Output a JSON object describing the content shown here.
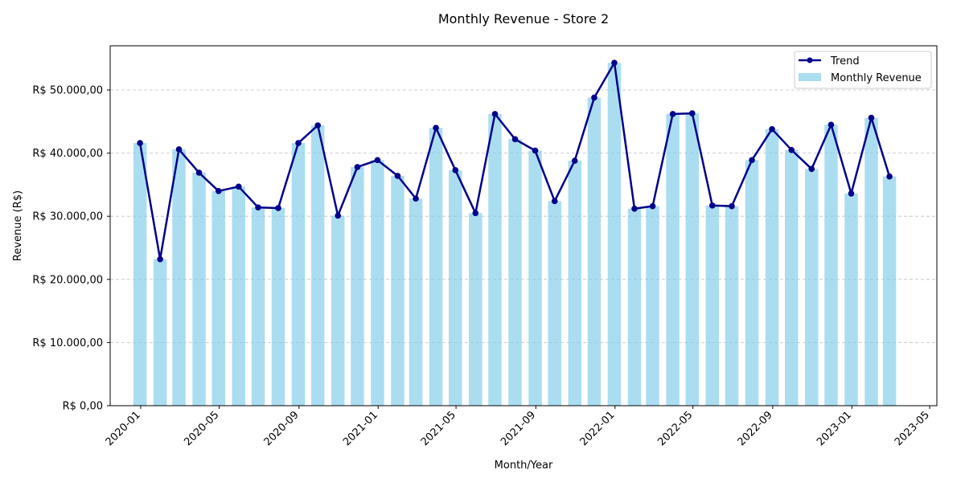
{
  "chart_data": {
    "type": "bar",
    "title": "Monthly Revenue - Store 2",
    "xlabel": "Month/Year",
    "ylabel": "Revenue (R$)",
    "ylim": [
      0,
      57000
    ],
    "y_ticks": [
      0,
      10000,
      20000,
      30000,
      40000,
      50000
    ],
    "y_tick_labels": [
      "R$ 0,00",
      "R$ 10.000,00",
      "R$ 20.000,00",
      "R$ 30.000,00",
      "R$ 40.000,00",
      "R$ 50.000,00"
    ],
    "x_range": [
      "2019-11-15",
      "2023-05-12"
    ],
    "x_ticks": [
      "2020-01-01",
      "2020-05-01",
      "2020-09-01",
      "2021-01-01",
      "2021-05-01",
      "2021-09-01",
      "2022-01-01",
      "2022-05-01",
      "2022-09-01",
      "2023-01-01",
      "2023-05-01"
    ],
    "x_tick_labels": [
      "2020-01",
      "2020-05",
      "2020-09",
      "2021-01",
      "2021-05",
      "2021-09",
      "2022-01",
      "2022-05",
      "2022-09",
      "2023-01",
      "2023-05"
    ],
    "grid": "y-dashed",
    "legend_position": "top-right",
    "dates": [
      "2019-12-31",
      "2020-01-31",
      "2020-02-29",
      "2020-03-31",
      "2020-04-30",
      "2020-05-31",
      "2020-06-30",
      "2020-07-31",
      "2020-08-31",
      "2020-09-30",
      "2020-10-31",
      "2020-11-30",
      "2020-12-31",
      "2021-01-31",
      "2021-02-28",
      "2021-03-31",
      "2021-04-30",
      "2021-05-31",
      "2021-06-30",
      "2021-07-31",
      "2021-08-31",
      "2021-09-30",
      "2021-10-31",
      "2021-11-30",
      "2021-12-31",
      "2022-01-31",
      "2022-02-28",
      "2022-03-31",
      "2022-04-30",
      "2022-05-31",
      "2022-06-30",
      "2022-07-31",
      "2022-08-31",
      "2022-09-30",
      "2022-10-31",
      "2022-11-30",
      "2022-12-31",
      "2023-01-31",
      "2023-02-28"
    ],
    "series": [
      {
        "name": "Monthly Revenue",
        "type": "bar",
        "color": "#87ceeb",
        "values": [
          41600,
          23200,
          40600,
          36900,
          34000,
          34700,
          31400,
          31300,
          41600,
          44400,
          30100,
          37800,
          38900,
          36400,
          32800,
          44000,
          37300,
          30500,
          46200,
          42200,
          40400,
          32400,
          38800,
          48800,
          54300,
          31200,
          31600,
          46200,
          46300,
          31700,
          31600,
          38900,
          43800,
          40500,
          37500,
          44500,
          33600,
          45600,
          36300
        ]
      },
      {
        "name": "Trend",
        "type": "line",
        "color": "#00008b",
        "values": [
          41600,
          23200,
          40600,
          36900,
          34000,
          34700,
          31400,
          31300,
          41600,
          44400,
          30100,
          37800,
          38900,
          36400,
          32800,
          44000,
          37300,
          30500,
          46200,
          42200,
          40400,
          32400,
          38800,
          48800,
          54300,
          31200,
          31600,
          46200,
          46300,
          31700,
          31600,
          38900,
          43800,
          40500,
          37500,
          44500,
          33600,
          45600,
          36300
        ]
      }
    ]
  }
}
